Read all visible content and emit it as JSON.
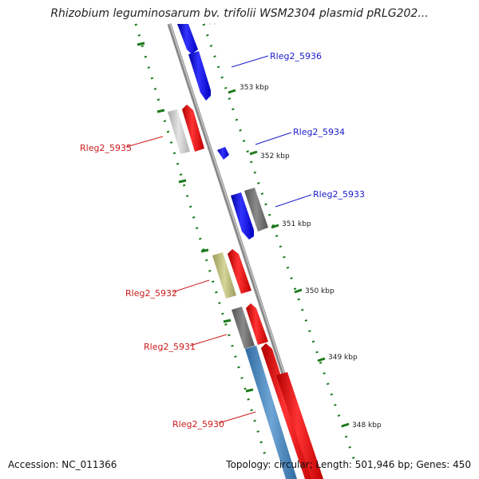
{
  "header": {
    "title": "Rhizobium leguminosarum bv. trifolii WSM2304 plasmid pRLG202..."
  },
  "footer": {
    "accession": "Accession: NC_011366",
    "summary": "Topology: circular; Length: 501,946 bp; Genes: 450"
  },
  "ticks": [
    {
      "label": "353 kbp"
    },
    {
      "label": "352 kbp"
    },
    {
      "label": "351 kbp"
    },
    {
      "label": "350 kbp"
    },
    {
      "label": "349 kbp"
    },
    {
      "label": "348 kbp"
    }
  ],
  "genes": [
    {
      "label": "Rleg2_5936",
      "color": "#1a1acc"
    },
    {
      "label": "Rleg2_5935",
      "color": "#cc1a1a"
    },
    {
      "label": "Rleg2_5934",
      "color": "#1a1acc"
    },
    {
      "label": "Rleg2_5933",
      "color": "#1a1acc"
    },
    {
      "label": "Rleg2_5932",
      "color": "#cc1a1a"
    },
    {
      "label": "Rleg2_5931",
      "color": "#cc1a1a"
    },
    {
      "label": "Rleg2_5930",
      "color": "#cc1a1a"
    }
  ],
  "colors": {
    "forward_cds": "#0000ff",
    "reverse_cds": "#ff0000",
    "backbone": "#888888",
    "gc_ticks": "#1a7a1a"
  }
}
